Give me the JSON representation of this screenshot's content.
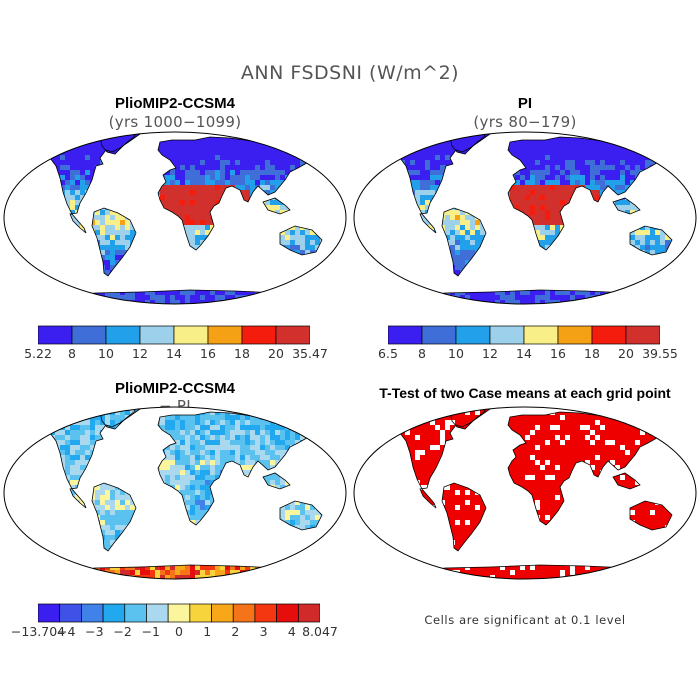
{
  "figure": {
    "title": "ANN FSDSNI (W/m^2)"
  },
  "panels": [
    {
      "title": "PlioMIP2-CCSM4",
      "subtitle": "(yrs 1000−1099)",
      "colorbar": {
        "colors": [
          "#3a1ff0",
          "#3f6ed9",
          "#22a0ea",
          "#9cd0eb",
          "#f8ef88",
          "#f5a116",
          "#f41c0c",
          "#d2302c"
        ],
        "labels": [
          "5.22",
          "8",
          "10",
          "12",
          "14",
          "16",
          "18",
          "20",
          "35.47"
        ]
      }
    },
    {
      "title": "PI",
      "subtitle": "(yrs 80−179)",
      "colorbar": {
        "colors": [
          "#3a1ff0",
          "#3f6ed9",
          "#22a0ea",
          "#9cd0eb",
          "#f8ef88",
          "#f5a116",
          "#f41c0c",
          "#d2302c"
        ],
        "labels": [
          "6.5",
          "8",
          "10",
          "12",
          "14",
          "16",
          "18",
          "20",
          "39.55"
        ]
      }
    },
    {
      "title": "PlioMIP2-CCSM4",
      "subtitle": "− PI",
      "colorbar": {
        "colors": [
          "#3a1ff0",
          "#3f51e6",
          "#3f83ea",
          "#22a8ee",
          "#5bc2f0",
          "#aad8ee",
          "#fbf59d",
          "#f8d43c",
          "#f7a718",
          "#f5741a",
          "#f43611",
          "#e60d0d",
          "#d12a2a"
        ],
        "labels": [
          "−13.704",
          "−4",
          "−3",
          "−2",
          "−1",
          "0",
          "1",
          "2",
          "3",
          "4",
          "8.047"
        ]
      }
    },
    {
      "title": "T-Test of two Case means at each grid point",
      "note": "Cells are significant at 0.1 level",
      "colors": [
        "#ee0000"
      ]
    }
  ]
}
